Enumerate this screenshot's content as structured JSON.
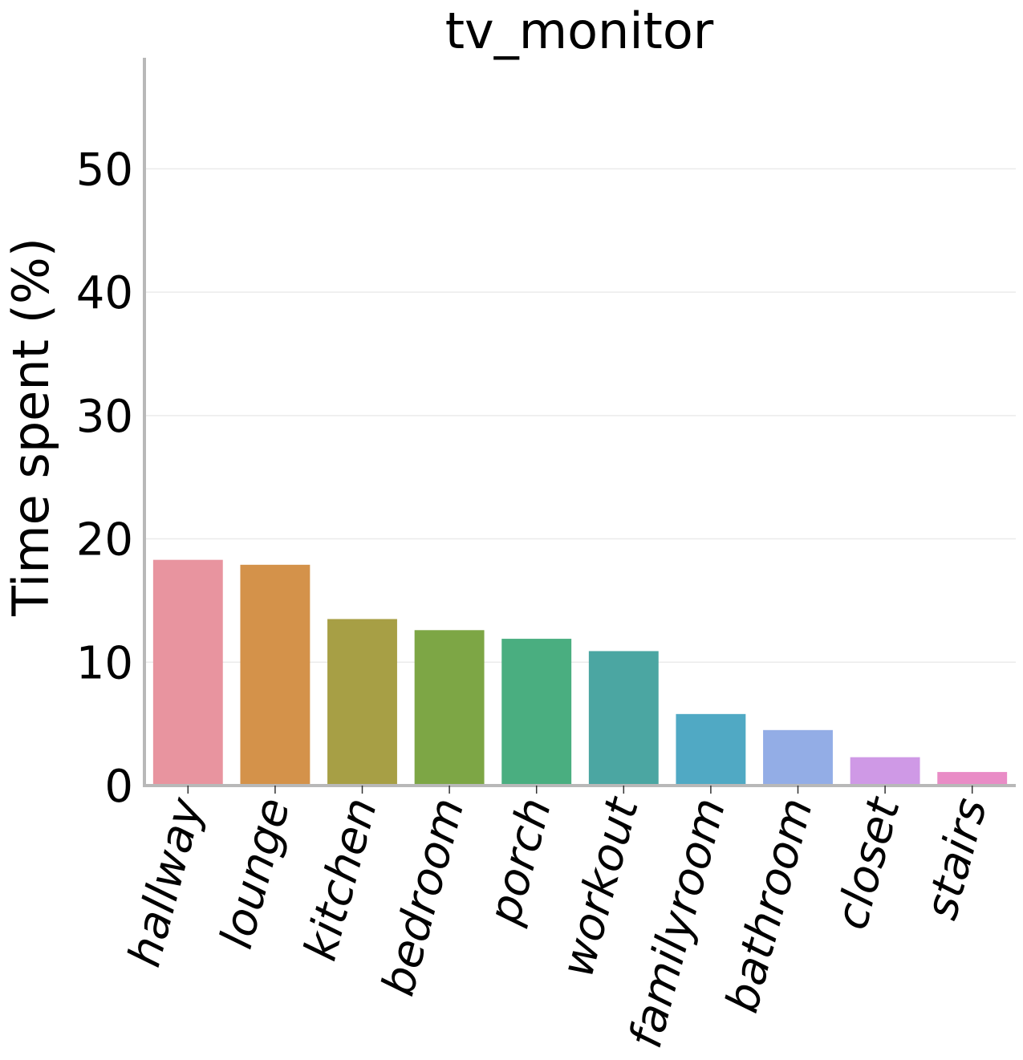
{
  "chart_data": {
    "type": "bar",
    "title": "tv_monitor",
    "xlabel": "",
    "ylabel": "Time spent (%)",
    "categories": [
      "hallway",
      "lounge",
      "kitchen",
      "bedroom",
      "porch",
      "workout",
      "familyroom",
      "bathroom",
      "closet",
      "stairs"
    ],
    "values": [
      18.3,
      17.9,
      13.5,
      12.6,
      11.9,
      10.9,
      5.8,
      4.5,
      2.3,
      1.1
    ],
    "colors": [
      "#e8949f",
      "#d4924a",
      "#a79f45",
      "#7da645",
      "#4aae80",
      "#4ba6a2",
      "#50a9c4",
      "#93ade6",
      "#cf99e6",
      "#e98cc6"
    ],
    "yticks": [
      0,
      10,
      20,
      30,
      40,
      50
    ],
    "ylim": [
      0,
      59
    ],
    "grid": "horizontal",
    "legend": "none"
  }
}
